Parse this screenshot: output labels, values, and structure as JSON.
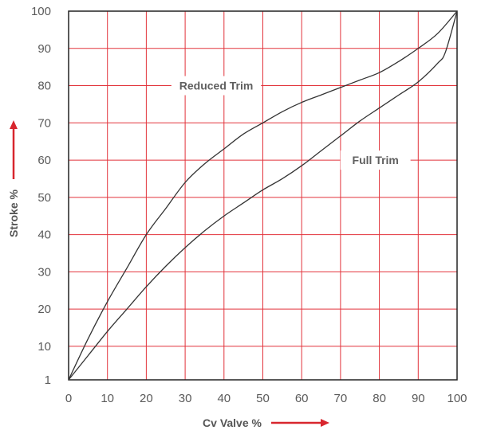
{
  "chart_data": {
    "type": "line",
    "xlabel": "Cv Valve %",
    "ylabel": "Stroke %",
    "xlim": [
      0,
      100
    ],
    "ylim": [
      1,
      100
    ],
    "x_ticks": [
      "0",
      "10",
      "20",
      "30",
      "40",
      "50",
      "60",
      "70",
      "80",
      "90",
      "100"
    ],
    "y_ticks": [
      "1",
      "10",
      "20",
      "30",
      "40",
      "50",
      "60",
      "70",
      "80",
      "90",
      "100"
    ],
    "grid": true,
    "grid_color": "#e2333b",
    "arrow_color": "#d8262e",
    "line_color": "#333333",
    "series": [
      {
        "name": "Reduced Trim",
        "x": [
          0,
          5,
          10,
          15,
          20,
          25,
          30,
          35,
          40,
          45,
          50,
          55,
          60,
          65,
          70,
          75,
          80,
          85,
          90,
          95,
          100
        ],
        "y": [
          1,
          12,
          22,
          31,
          40,
          47,
          54,
          59,
          63,
          67,
          70,
          73,
          75.5,
          77.5,
          79.5,
          81.5,
          83.5,
          86.5,
          90,
          94,
          100
        ]
      },
      {
        "name": "Full Trim",
        "x": [
          0,
          5,
          10,
          15,
          20,
          25,
          30,
          35,
          40,
          45,
          50,
          55,
          60,
          65,
          70,
          75,
          80,
          85,
          90,
          95,
          97,
          100
        ],
        "y": [
          1,
          7.5,
          14,
          20,
          26,
          31.5,
          36.5,
          41,
          45,
          48.5,
          52,
          55,
          58.5,
          62.5,
          66.5,
          70.5,
          74,
          77.5,
          81,
          86,
          89,
          100
        ]
      }
    ],
    "annotations": [
      {
        "text": "Reduced Trim",
        "x": 38,
        "y": 80
      },
      {
        "text": "Full Trim",
        "x": 79,
        "y": 60
      }
    ]
  }
}
